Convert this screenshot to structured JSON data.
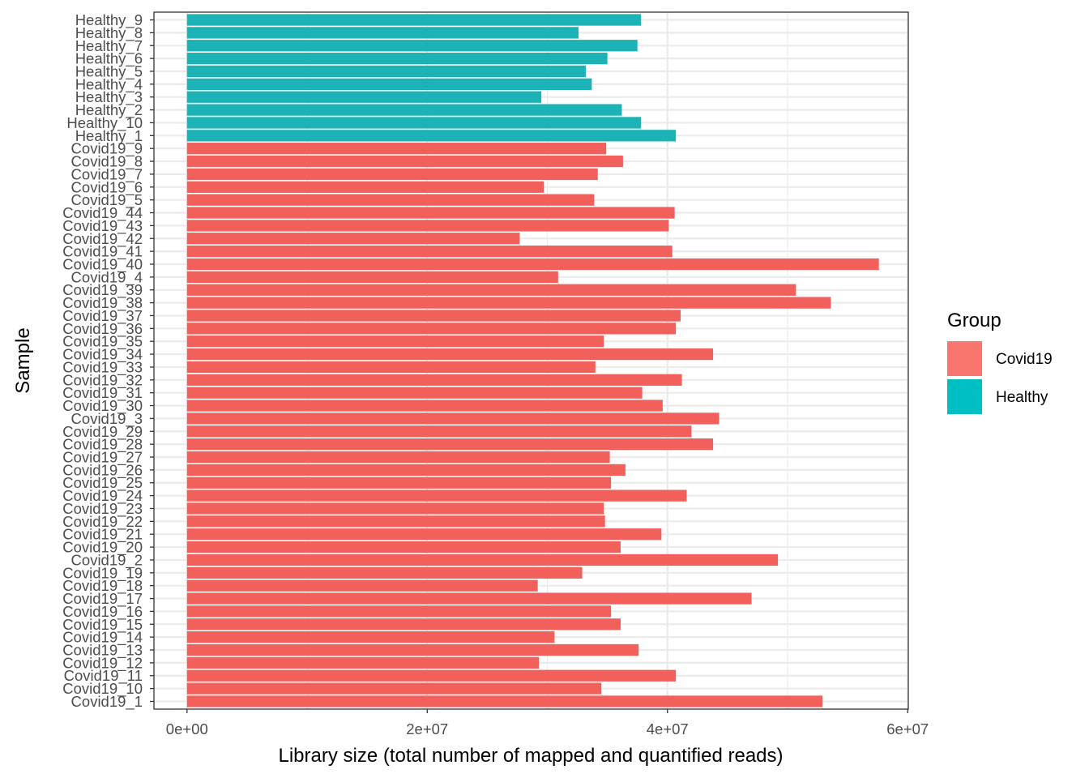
{
  "chart_data": {
    "type": "bar",
    "orientation": "horizontal",
    "xlabel": "Library size (total number of mapped and quantified reads)",
    "ylabel": "Sample",
    "xlim": [
      -2750000,
      60050000
    ],
    "xticks": [
      0,
      20000000,
      40000000,
      60000000
    ],
    "xtick_labels": [
      "0e+00",
      "2e+07",
      "4e+07",
      "6e+07"
    ],
    "grid": true,
    "legend": {
      "title": "Group",
      "position": "right",
      "entries": [
        {
          "label": "Covid19",
          "color": "#F8766D"
        },
        {
          "label": "Healthy",
          "color": "#00BFC4"
        }
      ]
    },
    "bar_colors": {
      "Covid19": "#F1605B",
      "Healthy": "#1DB3B6"
    },
    "categories": [
      "Covid19_1",
      "Covid19_10",
      "Covid19_11",
      "Covid19_12",
      "Covid19_13",
      "Covid19_14",
      "Covid19_15",
      "Covid19_16",
      "Covid19_17",
      "Covid19_18",
      "Covid19_19",
      "Covid19_2",
      "Covid19_20",
      "Covid19_21",
      "Covid19_22",
      "Covid19_23",
      "Covid19_24",
      "Covid19_25",
      "Covid19_26",
      "Covid19_27",
      "Covid19_28",
      "Covid19_29",
      "Covid19_3",
      "Covid19_30",
      "Covid19_31",
      "Covid19_32",
      "Covid19_33",
      "Covid19_34",
      "Covid19_35",
      "Covid19_36",
      "Covid19_37",
      "Covid19_38",
      "Covid19_39",
      "Covid19_4",
      "Covid19_40",
      "Covid19_41",
      "Covid19_42",
      "Covid19_43",
      "Covid19_44",
      "Covid19_5",
      "Covid19_6",
      "Covid19_7",
      "Covid19_8",
      "Covid19_9",
      "Healthy_1",
      "Healthy_10",
      "Healthy_2",
      "Healthy_3",
      "Healthy_4",
      "Healthy_5",
      "Healthy_6",
      "Healthy_7",
      "Healthy_8",
      "Healthy_9"
    ],
    "groups": [
      "Covid19",
      "Covid19",
      "Covid19",
      "Covid19",
      "Covid19",
      "Covid19",
      "Covid19",
      "Covid19",
      "Covid19",
      "Covid19",
      "Covid19",
      "Covid19",
      "Covid19",
      "Covid19",
      "Covid19",
      "Covid19",
      "Covid19",
      "Covid19",
      "Covid19",
      "Covid19",
      "Covid19",
      "Covid19",
      "Covid19",
      "Covid19",
      "Covid19",
      "Covid19",
      "Covid19",
      "Covid19",
      "Covid19",
      "Covid19",
      "Covid19",
      "Covid19",
      "Covid19",
      "Covid19",
      "Covid19",
      "Covid19",
      "Covid19",
      "Covid19",
      "Covid19",
      "Covid19",
      "Covid19",
      "Covid19",
      "Covid19",
      "Covid19",
      "Healthy",
      "Healthy",
      "Healthy",
      "Healthy",
      "Healthy",
      "Healthy",
      "Healthy",
      "Healthy",
      "Healthy",
      "Healthy"
    ],
    "values": [
      52900000,
      34500000,
      40700000,
      29300000,
      37600000,
      30600000,
      36100000,
      35300000,
      47000000,
      29200000,
      32900000,
      49200000,
      36100000,
      39500000,
      34800000,
      34700000,
      41600000,
      35300000,
      36500000,
      35200000,
      43800000,
      42000000,
      44300000,
      39600000,
      37900000,
      41200000,
      34000000,
      43800000,
      34700000,
      40700000,
      41100000,
      53600000,
      50700000,
      30900000,
      57600000,
      40400000,
      27700000,
      40100000,
      40600000,
      33900000,
      29700000,
      34200000,
      36300000,
      34900000,
      40700000,
      37800000,
      36200000,
      29500000,
      33700000,
      33200000,
      35000000,
      37500000,
      32600000,
      37800000
    ]
  }
}
